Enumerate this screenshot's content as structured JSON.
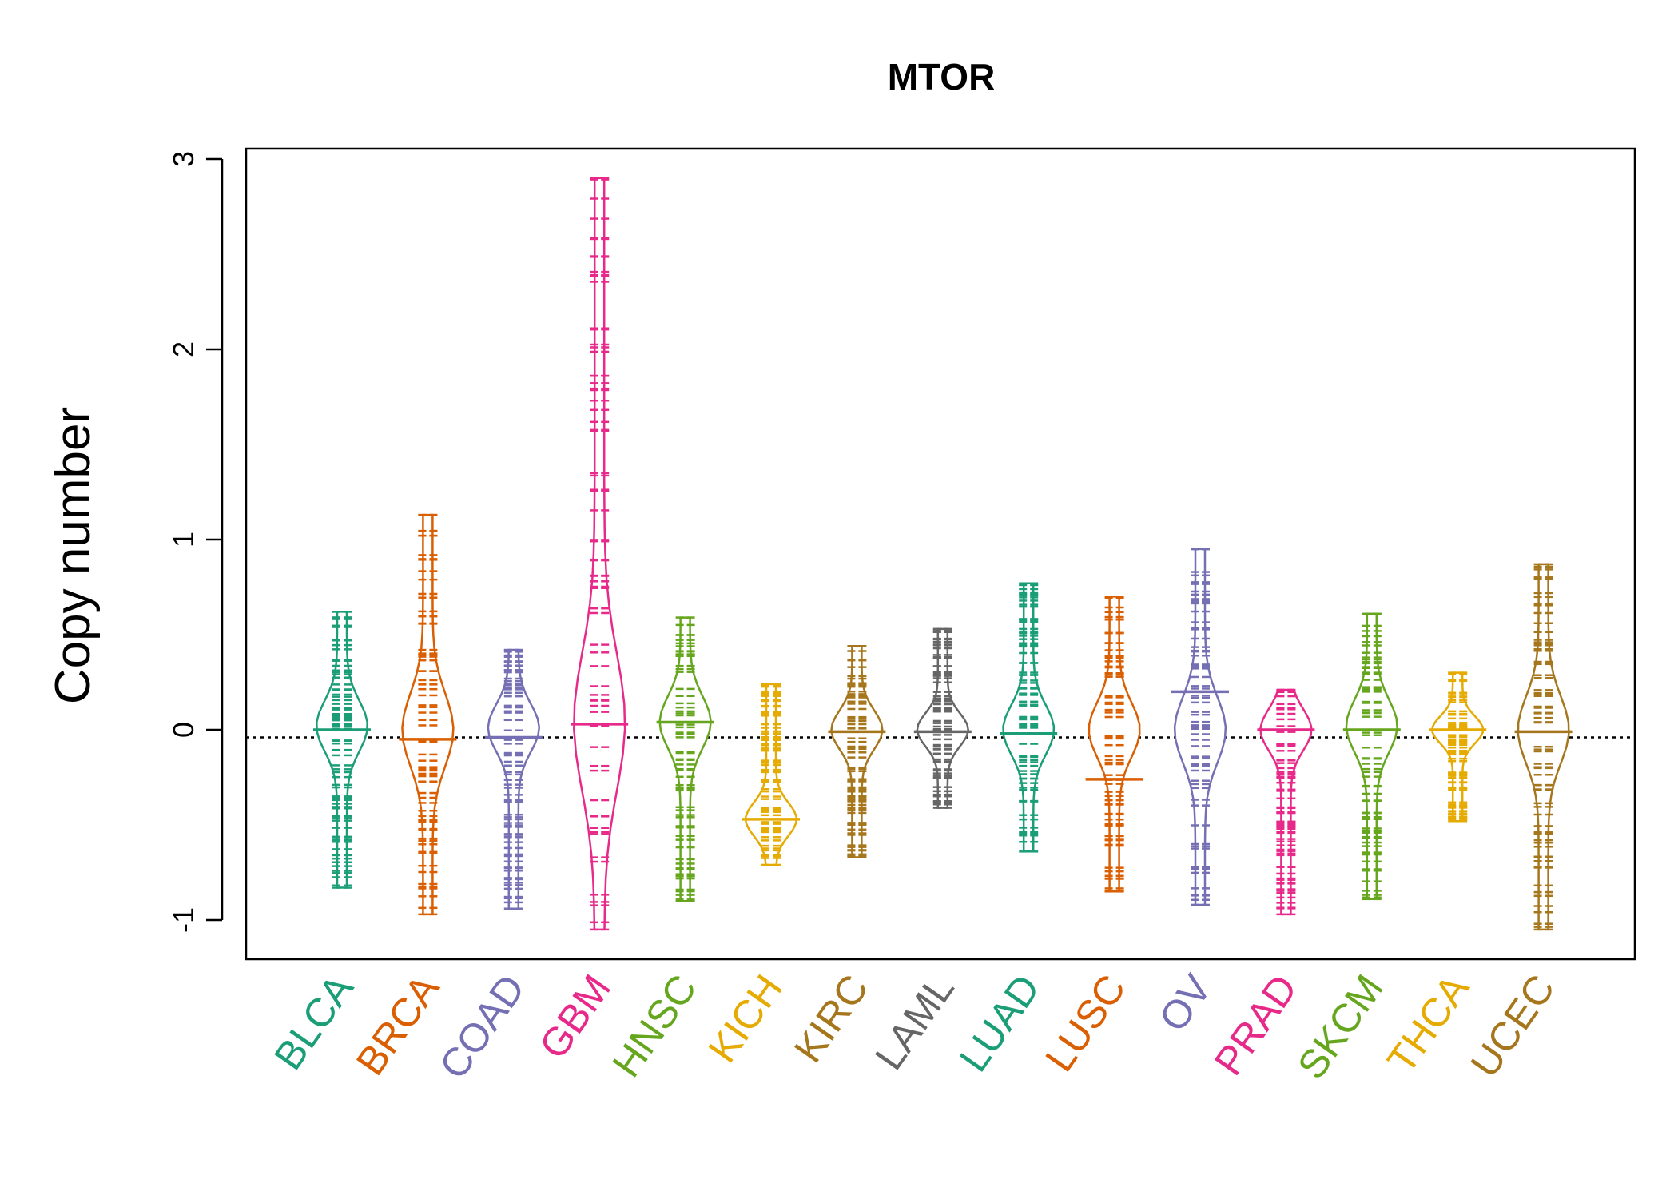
{
  "chart_data": {
    "type": "beanplot",
    "title": "MTOR",
    "ylabel": "Copy number",
    "xlabel": "",
    "ylim": [
      -1.2,
      3.05
    ],
    "yticks": [
      -1,
      0,
      1,
      2,
      3
    ],
    "reference_line": -0.04,
    "categories": [
      "BLCA",
      "BRCA",
      "COAD",
      "GBM",
      "HNSC",
      "KICH",
      "KIRC",
      "LAML",
      "LUAD",
      "LUSC",
      "OV",
      "PRAD",
      "SKCM",
      "THCA",
      "UCEC"
    ],
    "colors": [
      "#1B9E77",
      "#D95F02",
      "#7570B3",
      "#E7298A",
      "#66A61E",
      "#E6AB02",
      "#A6761D",
      "#666666",
      "#1B9E77",
      "#D95F02",
      "#7570B3",
      "#E7298A",
      "#66A61E",
      "#E6AB02",
      "#A6761D"
    ],
    "series": [
      {
        "name": "BLCA",
        "min": -0.83,
        "max": 0.62,
        "center": 0.02,
        "mean": 0.0
      },
      {
        "name": "BRCA",
        "min": -0.97,
        "max": 1.13,
        "center": 0.0,
        "mean": -0.05
      },
      {
        "name": "COAD",
        "min": -0.94,
        "max": 0.42,
        "center": 0.01,
        "mean": -0.04
      },
      {
        "name": "GBM",
        "min": -1.05,
        "max": 2.9,
        "center": 0.04,
        "mean": 0.03
      },
      {
        "name": "HNSC",
        "min": -0.9,
        "max": 0.59,
        "center": 0.04,
        "mean": 0.04
      },
      {
        "name": "KICH",
        "min": -0.71,
        "max": 0.24,
        "center": -0.47,
        "mean": -0.47
      },
      {
        "name": "KIRC",
        "min": -0.67,
        "max": 0.44,
        "center": 0.0,
        "mean": -0.01
      },
      {
        "name": "LAML",
        "min": -0.41,
        "max": 0.53,
        "center": 0.0,
        "mean": -0.01
      },
      {
        "name": "LUAD",
        "min": -0.64,
        "max": 0.77,
        "center": 0.0,
        "mean": -0.02
      },
      {
        "name": "LUSC",
        "min": -0.85,
        "max": 0.7,
        "center": 0.0,
        "mean": -0.26
      },
      {
        "name": "OV",
        "min": -0.92,
        "max": 0.95,
        "center": 0.0,
        "mean": 0.2
      },
      {
        "name": "PRAD",
        "min": -0.97,
        "max": 0.21,
        "center": 0.0,
        "mean": 0.0
      },
      {
        "name": "SKCM",
        "min": -0.89,
        "max": 0.61,
        "center": 0.02,
        "mean": 0.0
      },
      {
        "name": "THCA",
        "min": -0.48,
        "max": 0.3,
        "center": 0.0,
        "mean": 0.0
      },
      {
        "name": "UCEC",
        "min": -1.05,
        "max": 0.87,
        "center": 0.0,
        "mean": -0.01
      }
    ]
  }
}
